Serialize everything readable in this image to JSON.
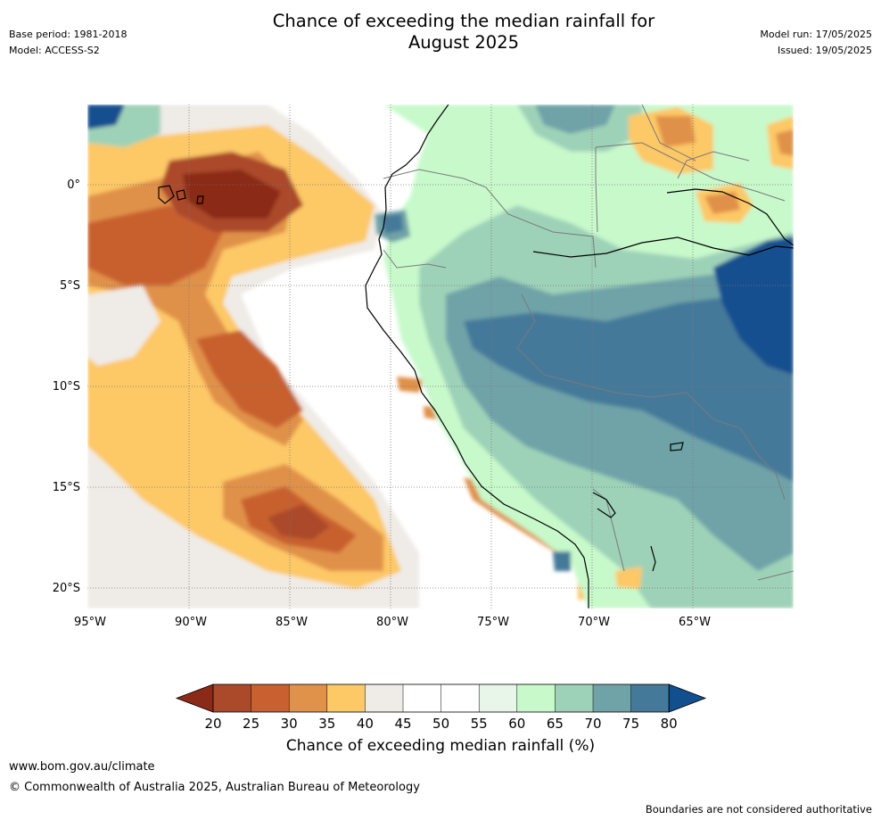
{
  "header": {
    "title_line1": "Chance of exceeding the median rainfall for",
    "title_line2": "August 2025",
    "base_period": "Base period: 1981-2018",
    "model": "Model: ACCESS-S2",
    "model_run": "Model run: 17/05/2025",
    "issued": "Issued: 19/05/2025"
  },
  "map": {
    "lon_labels": [
      "95°W",
      "90°W",
      "85°W",
      "80°W",
      "75°W",
      "70°W",
      "65°W"
    ],
    "lat_labels": [
      "0°",
      "5°S",
      "10°S",
      "15°S",
      "20°S"
    ],
    "gridlines": "dotted"
  },
  "colorbar": {
    "ticks": [
      "20",
      "25",
      "30",
      "35",
      "40",
      "45",
      "50",
      "55",
      "60",
      "65",
      "70",
      "75",
      "80"
    ],
    "colors": [
      "#8b2a18",
      "#ab4a2a",
      "#c8612f",
      "#e0914a",
      "#fdc866",
      "#efebe6",
      "#ffffff",
      "#ffffff",
      "#e8f6ea",
      "#c8f9cb",
      "#9ed2b8",
      "#6fa3a8",
      "#44799a",
      "#124f8f"
    ],
    "label": "Chance of exceeding median rainfall (%)"
  },
  "footer": {
    "url": "www.bom.gov.au/climate",
    "copyright": "© Commonwealth of Australia 2025, Australian Bureau of Meteorology",
    "note": "Boundaries are not considered authoritative"
  }
}
